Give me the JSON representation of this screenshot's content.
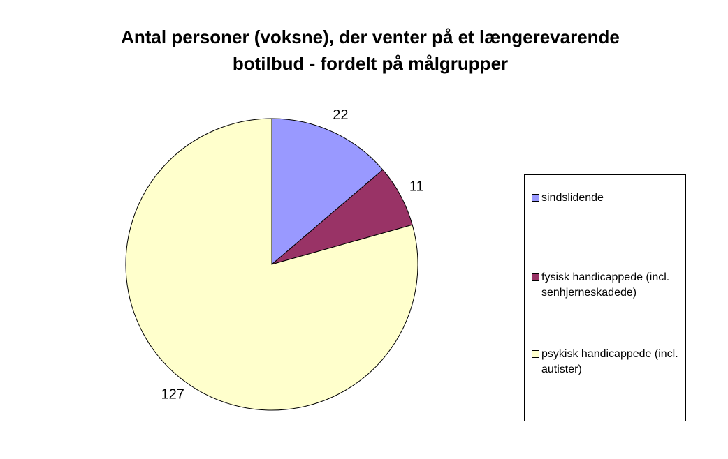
{
  "chart_data": {
    "type": "pie",
    "title": "Antal personer (voksne), der venter på et længerevarende botilbud - fordelt på målgrupper",
    "categories": [
      "sindslidende",
      "fysisk handicappede (incl. senhjerneskadede)",
      "psykisk handicappede (incl. autister)"
    ],
    "values": [
      22,
      11,
      127
    ],
    "colors": [
      "#9999ff",
      "#993366",
      "#ffffcc"
    ],
    "legend": "right"
  }
}
